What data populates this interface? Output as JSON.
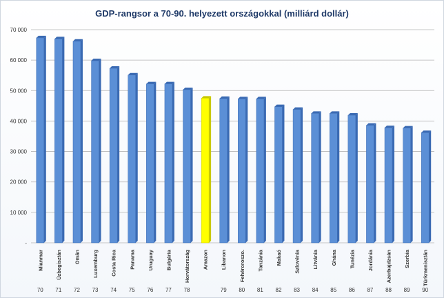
{
  "chart_data": {
    "type": "bar",
    "title": "GDP-rangsor a 70-90. helyezett országokkal (milliárd dollár)",
    "xlabel": "",
    "ylabel": "",
    "ylim": [
      0,
      70000
    ],
    "yticks": [
      "-",
      "10 000",
      "20 000",
      "30 000",
      "40 000",
      "50 000",
      "60 000",
      "70 000"
    ],
    "grid": true,
    "legend": "none",
    "categories": [
      "Mianmar",
      "Üzbegisztán",
      "Omán",
      "Luxemburg",
      "Costa Rica",
      "Panama",
      "Uruguay",
      "Bulgária",
      "Horvátország",
      "Amazon",
      "Libanon",
      "Fehéroroszo.",
      "Tanzánia",
      "Makaó",
      "Szlovénia",
      "Litvánia",
      "Ghána",
      "Tunézia",
      "Jordánia",
      "Azerbajdzsán",
      "Szerbia",
      "Türkmenisztán"
    ],
    "ranks": [
      "70",
      "71",
      "72",
      "73",
      "74",
      "75",
      "76",
      "77",
      "78",
      "",
      "79",
      "80",
      "81",
      "82",
      "83",
      "84",
      "85",
      "86",
      "87",
      "88",
      "89",
      "90"
    ],
    "values": [
      67300,
      67000,
      66200,
      59800,
      57300,
      55100,
      52200,
      52200,
      50300,
      47500,
      47400,
      47300,
      47300,
      44700,
      43800,
      42500,
      42500,
      41900,
      38600,
      37800,
      37700,
      36200
    ],
    "highlight_index": 9,
    "colors": {
      "bar": "#5b8fd6",
      "bar_dark": "#3a6ab3",
      "highlight": "#ffff00",
      "highlight_dark": "#c8c800",
      "grid": "#b4b4b4"
    }
  }
}
